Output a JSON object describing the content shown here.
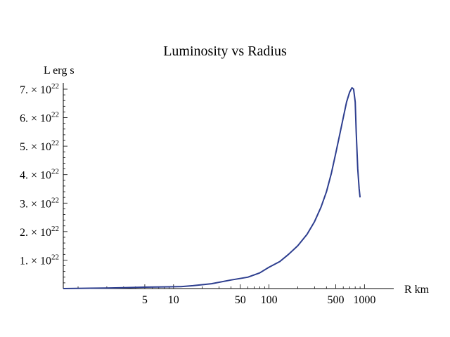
{
  "chart_data": {
    "type": "line",
    "title": "Luminosity vs Radius",
    "xlabel": "R km",
    "ylabel": "L erg s",
    "x_scale": "log",
    "xlim": [
      0.7,
      1000
    ],
    "ylim": [
      0,
      7.3e+22
    ],
    "x_ticks": [
      {
        "value": 5,
        "label": "5"
      },
      {
        "value": 10,
        "label": "10"
      },
      {
        "value": 50,
        "label": "50"
      },
      {
        "value": 100,
        "label": "100"
      },
      {
        "value": 500,
        "label": "500"
      },
      {
        "value": 1000,
        "label": "1000"
      }
    ],
    "y_ticks": [
      {
        "value": 1e+22,
        "mantissa": "1.",
        "base": "10",
        "exponent": "22"
      },
      {
        "value": 2e+22,
        "mantissa": "2.",
        "base": "10",
        "exponent": "22"
      },
      {
        "value": 3e+22,
        "mantissa": "3.",
        "base": "10",
        "exponent": "22"
      },
      {
        "value": 4e+22,
        "mantissa": "4.",
        "base": "10",
        "exponent": "22"
      },
      {
        "value": 5e+22,
        "mantissa": "5.",
        "base": "10",
        "exponent": "22"
      },
      {
        "value": 6e+22,
        "mantissa": "6.",
        "base": "10",
        "exponent": "22"
      },
      {
        "value": 7e+22,
        "mantissa": "7.",
        "base": "10",
        "exponent": "22"
      }
    ],
    "grid": false,
    "legend": "none",
    "series_color": "#2d3e8f",
    "axis_color": "#000000",
    "x": [
      0.7,
      2,
      3,
      5,
      8,
      12,
      16,
      25,
      40,
      60,
      80,
      100,
      130,
      160,
      200,
      250,
      300,
      350,
      400,
      450,
      500,
      550,
      600,
      650,
      700,
      740,
      770,
      800,
      820,
      850,
      880,
      900
    ],
    "y": [
      0,
      2e+20,
      3e+20,
      5e+20,
      6e+20,
      7e+20,
      1e+21,
      1.7e+21,
      3e+21,
      4e+21,
      5.5e+21,
      7.5e+21,
      9.5e+21,
      1.2e+22,
      1.5e+22,
      1.9e+22,
      2.35e+22,
      2.85e+22,
      3.4e+22,
      4.05e+22,
      4.75e+22,
      5.4e+22,
      6e+22,
      6.55e+22,
      6.9e+22,
      7.05e+22,
      7e+22,
      6.55e+22,
      5.5e+22,
      4.2e+22,
      3.5e+22,
      3.2e+22
    ]
  }
}
